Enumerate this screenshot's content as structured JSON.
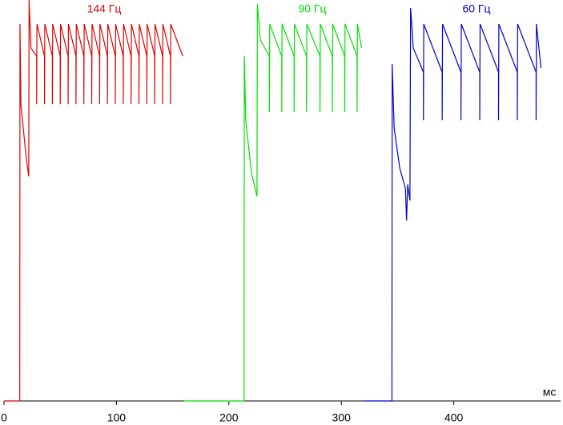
{
  "chart_data": {
    "type": "line",
    "x_label": "мс",
    "xlim": [
      0,
      495
    ],
    "xticks": [
      0,
      100,
      200,
      300,
      400
    ],
    "ylim": [
      0,
      100
    ],
    "series": [
      {
        "name": "144 Гц",
        "color": "#e00000",
        "x": [
          0,
          14,
          14.2,
          15,
          20,
          22,
          22.3,
          24,
          29,
          29,
          29.3,
          36,
          36,
          36.3,
          43,
          43,
          43.3,
          50,
          50,
          50.3,
          57,
          57,
          57.3,
          64,
          64,
          64.3,
          71,
          71,
          71.3,
          78,
          78,
          78.3,
          85,
          85,
          85.3,
          92,
          92,
          92.3,
          99,
          99,
          99.3,
          106,
          106,
          106.3,
          113,
          113,
          113.3,
          120,
          120,
          120.3,
          127,
          127,
          127.3,
          134,
          134,
          134.3,
          141,
          141,
          141.3,
          148,
          148,
          148.3,
          159
        ],
        "values": [
          0,
          0,
          94,
          74,
          60,
          56,
          100,
          88,
          86,
          74,
          94,
          86,
          74,
          94,
          86,
          74,
          94,
          86,
          74,
          94,
          86,
          74,
          94,
          86,
          74,
          94,
          86,
          74,
          94,
          86,
          74,
          94,
          86,
          74,
          94,
          86,
          74,
          94,
          86,
          74,
          94,
          86,
          74,
          94,
          86,
          74,
          94,
          86,
          74,
          94,
          86,
          74,
          94,
          86,
          74,
          94,
          86,
          74,
          94,
          86,
          74,
          94,
          86
        ]
      },
      {
        "name": "90 Гц",
        "color": "#00e000",
        "x": [
          160,
          213.5,
          213.7,
          215,
          220,
          225,
          225.3,
          228,
          236,
          236,
          236.3,
          247,
          247,
          247.3,
          258,
          258,
          258.3,
          269,
          269,
          269.3,
          281,
          281,
          281.3,
          292,
          292,
          292.3,
          303,
          303,
          303.3,
          314,
          314,
          314.3,
          318
        ],
        "values": [
          0,
          0,
          86,
          70,
          57,
          51,
          99,
          90,
          86,
          72,
          94,
          86,
          72,
          94,
          86,
          72,
          94,
          86,
          72,
          94,
          86,
          72,
          94,
          86,
          72,
          94,
          86,
          72,
          94,
          86,
          72,
          94,
          88
        ]
      },
      {
        "name": "60 Гц",
        "color": "#0000d0",
        "x": [
          320,
          345,
          345.2,
          347,
          352,
          357,
          358,
          359,
          361,
          361.6,
          364,
          373,
          373,
          373.3,
          389.7,
          389.7,
          390,
          406.4,
          406.4,
          406.7,
          423.1,
          423.1,
          423.4,
          439.8,
          439.8,
          440.1,
          456.5,
          456.5,
          456.8,
          473.2,
          473.2,
          473.5,
          477.6
        ],
        "values": [
          0,
          0,
          84,
          68,
          58,
          53,
          45,
          54,
          50,
          98,
          88,
          82,
          70,
          94,
          82,
          70,
          94,
          82,
          70,
          94,
          82,
          70,
          94,
          82,
          70,
          94,
          82,
          70,
          94,
          82,
          70,
          94,
          83
        ]
      }
    ]
  }
}
